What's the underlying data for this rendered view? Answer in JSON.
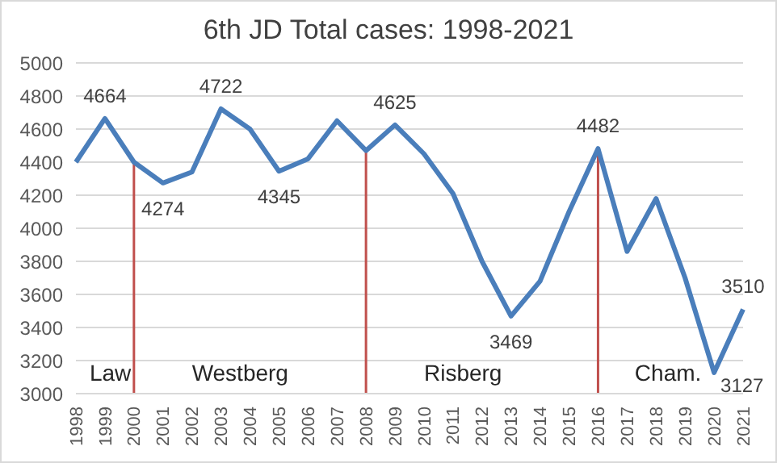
{
  "chart_data": {
    "type": "line",
    "title": "6th JD Total cases: 1998-2021",
    "categories": [
      "1998",
      "1999",
      "2000",
      "2001",
      "2002",
      "2003",
      "2004",
      "2005",
      "2006",
      "2007",
      "2008",
      "2009",
      "2010",
      "2011",
      "2012",
      "2013",
      "2014",
      "2015",
      "2016",
      "2017",
      "2018",
      "2019",
      "2020",
      "2021"
    ],
    "series": [
      {
        "color": "#4a7ebb",
        "values": [
          4400,
          4664,
          4400,
          4274,
          4340,
          4722,
          4600,
          4345,
          4420,
          4650,
          4470,
          4625,
          4450,
          4210,
          3800,
          3469,
          3680,
          4100,
          4482,
          3860,
          4180,
          3700,
          3127,
          3510
        ],
        "value_labels": [
          null,
          "4664",
          null,
          "4274",
          null,
          "4722",
          null,
          "4345",
          null,
          null,
          null,
          "4625",
          null,
          null,
          null,
          "3469",
          null,
          null,
          "4482",
          null,
          null,
          null,
          "3127",
          "3510"
        ]
      }
    ],
    "ylim": [
      3000,
      5000
    ],
    "yticks": [
      3000,
      3200,
      3400,
      3600,
      3800,
      4000,
      4200,
      4400,
      4600,
      4800,
      5000
    ],
    "grid": "y",
    "legend": false,
    "marker": "none",
    "line_style": "solid",
    "ref_lines": [
      {
        "axis": "x",
        "value": "2000",
        "color": "#c0504d"
      },
      {
        "axis": "x",
        "value": "2008",
        "color": "#c0504d"
      },
      {
        "axis": "x",
        "value": "2016",
        "color": "#c0504d"
      }
    ],
    "annotations": [
      "Law",
      "Westberg",
      "Risberg",
      "Cham."
    ]
  }
}
